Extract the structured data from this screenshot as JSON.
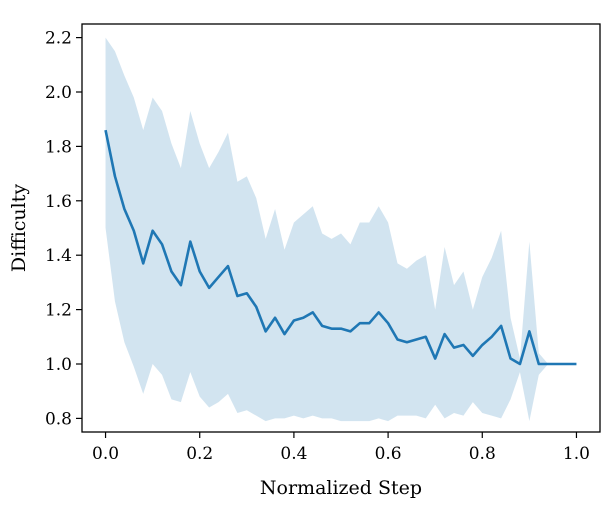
{
  "chart_data": {
    "type": "line",
    "xlabel": "Normalized Step",
    "ylabel": "Difficulty",
    "xlim": [
      -0.05,
      1.05
    ],
    "ylim": [
      0.75,
      2.25
    ],
    "xticks": [
      0.0,
      0.2,
      0.4,
      0.6,
      0.8,
      1.0
    ],
    "xtick_labels": [
      "0.0",
      "0.2",
      "0.4",
      "0.6",
      "0.8",
      "1.0"
    ],
    "yticks": [
      0.8,
      1.0,
      1.2,
      1.4,
      1.6,
      1.8,
      2.0,
      2.2
    ],
    "ytick_labels": [
      "0.8",
      "1.0",
      "1.2",
      "1.4",
      "1.6",
      "1.8",
      "2.0",
      "2.2"
    ],
    "grid": false,
    "colors": {
      "line": "#1f77b4",
      "band": "#1f77b4",
      "band_opacity": 0.2
    },
    "series": [
      {
        "x": [
          0.0,
          0.02,
          0.04,
          0.06,
          0.08,
          0.1,
          0.12,
          0.14,
          0.16,
          0.18,
          0.2,
          0.22,
          0.24,
          0.26,
          0.28,
          0.3,
          0.32,
          0.34,
          0.36,
          0.38,
          0.4,
          0.42,
          0.44,
          0.46,
          0.48,
          0.5,
          0.52,
          0.54,
          0.56,
          0.58,
          0.6,
          0.62,
          0.64,
          0.66,
          0.68,
          0.7,
          0.72,
          0.74,
          0.76,
          0.78,
          0.8,
          0.82,
          0.84,
          0.86,
          0.88,
          0.9,
          0.92,
          0.94,
          0.96,
          0.98,
          1.0
        ],
        "mean": [
          1.86,
          1.69,
          1.57,
          1.49,
          1.37,
          1.49,
          1.44,
          1.34,
          1.29,
          1.45,
          1.34,
          1.28,
          1.32,
          1.36,
          1.25,
          1.26,
          1.21,
          1.12,
          1.17,
          1.11,
          1.16,
          1.17,
          1.19,
          1.14,
          1.13,
          1.13,
          1.12,
          1.15,
          1.15,
          1.19,
          1.15,
          1.09,
          1.08,
          1.09,
          1.1,
          1.02,
          1.11,
          1.06,
          1.07,
          1.03,
          1.07,
          1.1,
          1.14,
          1.02,
          1.0,
          1.12,
          1.0,
          1.0,
          1.0,
          1.0,
          1.0
        ],
        "upper": [
          2.2,
          2.15,
          2.06,
          1.98,
          1.86,
          1.98,
          1.93,
          1.81,
          1.72,
          1.93,
          1.81,
          1.72,
          1.78,
          1.85,
          1.67,
          1.69,
          1.61,
          1.46,
          1.57,
          1.42,
          1.52,
          1.55,
          1.58,
          1.48,
          1.46,
          1.48,
          1.44,
          1.52,
          1.52,
          1.58,
          1.52,
          1.37,
          1.35,
          1.38,
          1.4,
          1.2,
          1.43,
          1.29,
          1.34,
          1.2,
          1.32,
          1.39,
          1.49,
          1.17,
          1.02,
          1.45,
          1.04,
          1.0,
          1.0,
          1.0,
          1.0
        ],
        "lower": [
          1.5,
          1.23,
          1.08,
          0.99,
          0.89,
          1.0,
          0.96,
          0.87,
          0.86,
          0.97,
          0.88,
          0.84,
          0.86,
          0.89,
          0.82,
          0.83,
          0.81,
          0.79,
          0.8,
          0.8,
          0.81,
          0.8,
          0.81,
          0.8,
          0.8,
          0.79,
          0.79,
          0.79,
          0.79,
          0.8,
          0.79,
          0.81,
          0.81,
          0.81,
          0.8,
          0.85,
          0.8,
          0.82,
          0.81,
          0.86,
          0.82,
          0.81,
          0.8,
          0.87,
          0.97,
          0.79,
          0.96,
          1.0,
          1.0,
          1.0,
          1.0
        ]
      }
    ]
  }
}
